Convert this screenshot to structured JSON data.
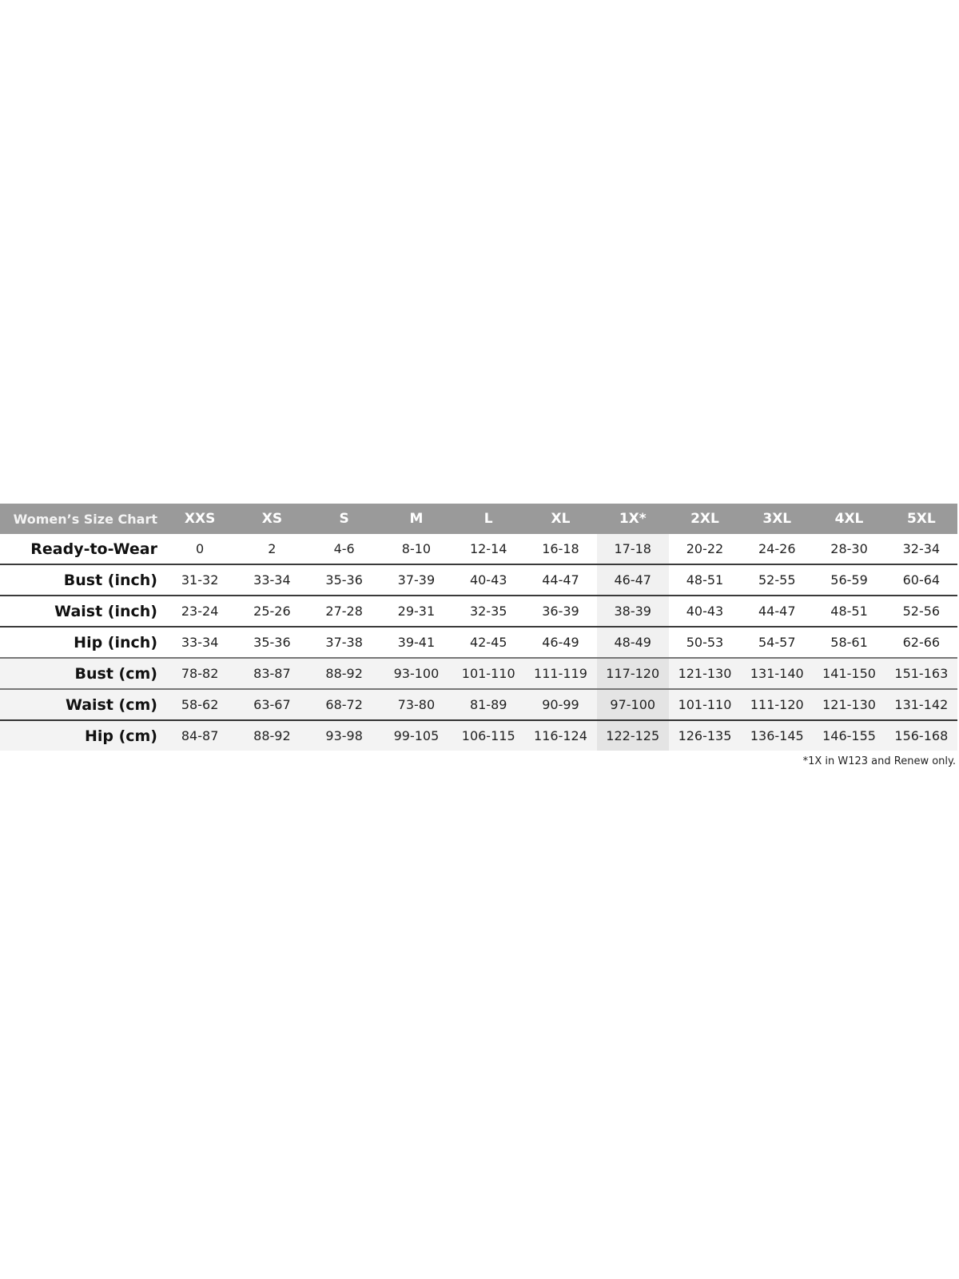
{
  "chart_data": {
    "type": "table",
    "title": "Women’s Size Chart",
    "columns": [
      "XXS",
      "XS",
      "S",
      "M",
      "L",
      "XL",
      "1X*",
      "2XL",
      "3XL",
      "4XL",
      "5XL"
    ],
    "highlighted_column": "1X*",
    "rows": [
      {
        "label": "Ready-to-Wear",
        "unit": "inch",
        "values": [
          "0",
          "2",
          "4-6",
          "8-10",
          "12-14",
          "16-18",
          "17-18",
          "20-22",
          "24-26",
          "28-30",
          "32-34"
        ]
      },
      {
        "label": "Bust (inch)",
        "unit": "inch",
        "values": [
          "31-32",
          "33-34",
          "35-36",
          "37-39",
          "40-43",
          "44-47",
          "46-47",
          "48-51",
          "52-55",
          "56-59",
          "60-64"
        ]
      },
      {
        "label": "Waist (inch)",
        "unit": "inch",
        "values": [
          "23-24",
          "25-26",
          "27-28",
          "29-31",
          "32-35",
          "36-39",
          "38-39",
          "40-43",
          "44-47",
          "48-51",
          "52-56"
        ]
      },
      {
        "label": "Hip (inch)",
        "unit": "inch",
        "values": [
          "33-34",
          "35-36",
          "37-38",
          "39-41",
          "42-45",
          "46-49",
          "48-49",
          "50-53",
          "54-57",
          "58-61",
          "62-66"
        ]
      },
      {
        "label": "Bust (cm)",
        "unit": "cm",
        "values": [
          "78-82",
          "83-87",
          "88-92",
          "93-100",
          "101-110",
          "111-119",
          "117-120",
          "121-130",
          "131-140",
          "141-150",
          "151-163"
        ]
      },
      {
        "label": "Waist (cm)",
        "unit": "cm",
        "values": [
          "58-62",
          "63-67",
          "68-72",
          "73-80",
          "81-89",
          "90-99",
          "97-100",
          "101-110",
          "111-120",
          "121-130",
          "131-142"
        ]
      },
      {
        "label": "Hip (cm)",
        "unit": "cm",
        "values": [
          "84-87",
          "88-92",
          "93-98",
          "99-105",
          "106-115",
          "116-124",
          "122-125",
          "126-135",
          "136-145",
          "146-155",
          "156-168"
        ]
      }
    ],
    "footnote": "*1X in W123 and Renew only.",
    "colors": {
      "header_bg": "#9a9a9a",
      "header_text": "#ffffff",
      "cm_row_bg": "#f3f3f3",
      "highlight_bg": "#f1f1f1"
    }
  }
}
